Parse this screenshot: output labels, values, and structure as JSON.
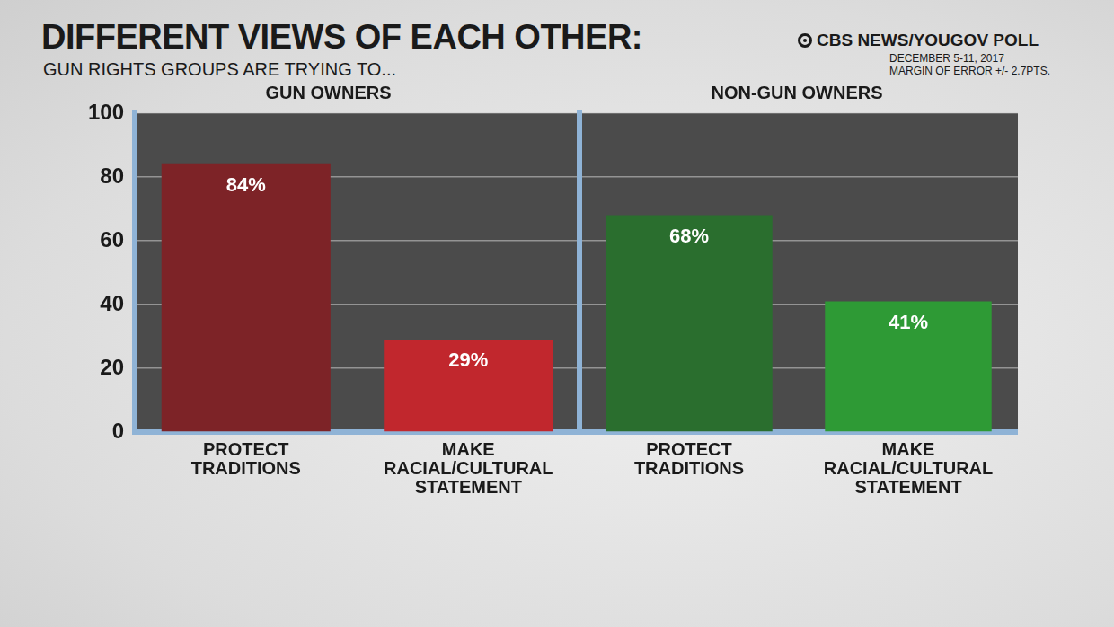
{
  "title": "DIFFERENT VIEWS OF EACH OTHER:",
  "subtitle": "GUN RIGHTS GROUPS ARE TRYING TO...",
  "source": "CBS NEWS/YOUGOV POLL",
  "notes": [
    "DECEMBER 5-11, 2017",
    "MARGIN OF ERROR +/- 2.7PTS."
  ],
  "chart_data": [
    {
      "type": "bar",
      "title": "GUN OWNERS",
      "categories": [
        "PROTECT TRADITIONS",
        "MAKE RACIAL/CULTURAL STATEMENT"
      ],
      "values": [
        84,
        29
      ],
      "value_labels": [
        "84%",
        "29%"
      ],
      "colors": [
        "#7d2327",
        "#c1272d"
      ],
      "ylim": [
        0,
        100
      ],
      "yticks": [
        0,
        20,
        40,
        60,
        80,
        100
      ],
      "grid": true,
      "data_labels": true
    },
    {
      "type": "bar",
      "title": "NON-GUN OWNERS",
      "categories": [
        "PROTECT TRADITIONS",
        "MAKE RACIAL/CULTURAL STATEMENT"
      ],
      "values": [
        68,
        41
      ],
      "value_labels": [
        "68%",
        "41%"
      ],
      "colors": [
        "#2a6e2e",
        "#2e9a35"
      ],
      "ylim": [
        0,
        100
      ],
      "yticks": [
        0,
        20,
        40,
        60,
        80,
        100
      ],
      "grid": true,
      "data_labels": true,
      "tick_labels": "x"
    }
  ]
}
